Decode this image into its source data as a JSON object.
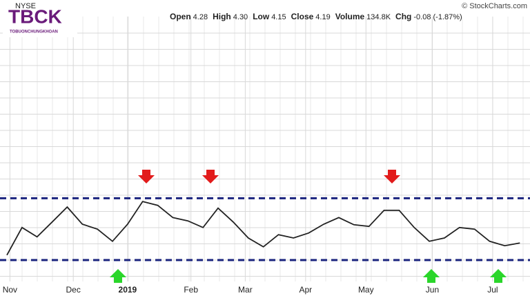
{
  "logo": {
    "title": "TBCK",
    "subtitle": "TOBUONCHUNGKHOAN"
  },
  "exchange": "NYSE",
  "source": "© StockCharts.com",
  "quote": [
    {
      "label": "Open",
      "value": "4.28"
    },
    {
      "label": "High",
      "value": "4.30"
    },
    {
      "label": "Low",
      "value": "4.15"
    },
    {
      "label": "Close",
      "value": "4.19"
    },
    {
      "label": "Volume",
      "value": "134.8K"
    },
    {
      "label": "Chg",
      "value": "-0.08 (-1.87%)"
    }
  ],
  "chart_data": {
    "type": "line",
    "x": [
      0,
      5,
      10,
      15,
      20,
      25,
      30,
      35,
      40,
      45,
      50,
      55,
      60,
      65,
      70,
      75,
      80,
      85,
      90,
      95,
      100,
      105,
      110,
      115,
      120,
      125,
      130,
      135,
      140,
      145,
      150,
      155,
      160,
      165,
      170
    ],
    "series": [
      {
        "name": "Close",
        "color": "#222222",
        "values": [
          3.97,
          4.47,
          4.3,
          4.57,
          4.84,
          4.53,
          4.44,
          4.22,
          4.53,
          4.94,
          4.87,
          4.65,
          4.59,
          4.47,
          4.82,
          4.57,
          4.28,
          4.12,
          4.34,
          4.28,
          4.37,
          4.53,
          4.65,
          4.52,
          4.49,
          4.78,
          4.78,
          4.47,
          4.22,
          4.28,
          4.47,
          4.44,
          4.22,
          4.14,
          4.19
        ]
      }
    ],
    "levels": [
      5.0,
      3.88
    ],
    "level_color": "#1a237e",
    "xlim": [
      0,
      172
    ],
    "xticks": [
      {
        "value": 1,
        "label": "Nov"
      },
      {
        "value": 22,
        "label": "Dec"
      },
      {
        "value": 40,
        "label": "2019"
      },
      {
        "value": 61,
        "label": "Feb"
      },
      {
        "value": 79,
        "label": "Mar"
      },
      {
        "value": 99,
        "label": "Apr"
      },
      {
        "value": 119,
        "label": "May"
      },
      {
        "value": 141,
        "label": "Jun"
      },
      {
        "value": 161,
        "label": "Jul"
      }
    ],
    "ylim": [
      3.53,
      8.09
    ],
    "grid": true
  }
}
